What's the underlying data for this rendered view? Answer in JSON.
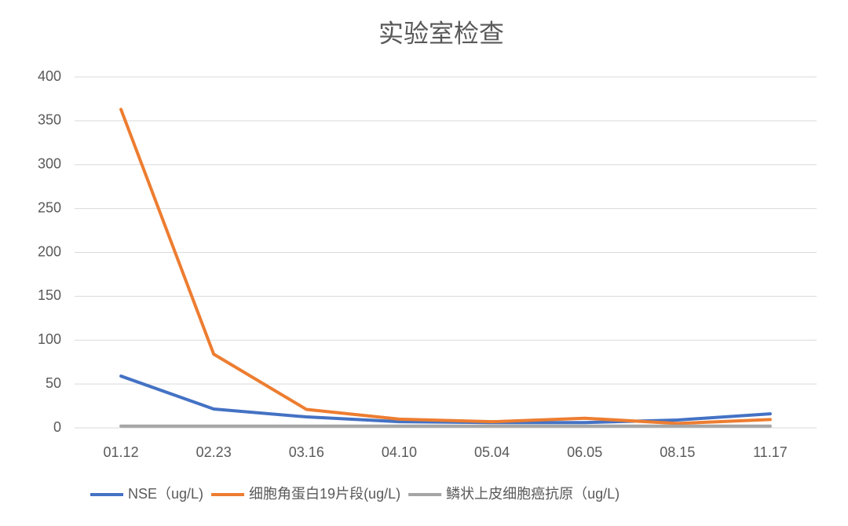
{
  "chart_data": {
    "type": "line",
    "title": "实验室检查",
    "categories": [
      "01.12",
      "02.23",
      "03.16",
      "04.10",
      "05.04",
      "06.05",
      "08.15",
      "11.17"
    ],
    "series": [
      {
        "name": "NSE（ug/L)",
        "color": "#4472c4",
        "values": [
          59,
          21.5,
          12.5,
          7,
          6,
          6,
          9,
          16
        ]
      },
      {
        "name": "细胞角蛋白19片段(ug/L)",
        "color": "#ed7d31",
        "values": [
          363,
          84,
          21,
          10,
          7,
          11,
          5,
          9.5
        ]
      },
      {
        "name": "鳞状上皮细胞癌抗原（ug/L)",
        "color": "#a5a5a5",
        "values": [
          2,
          2,
          2,
          2,
          2,
          2,
          2,
          2
        ]
      }
    ],
    "ylim": [
      0,
      400
    ],
    "yticks": [
      0,
      50,
      100,
      150,
      200,
      250,
      300,
      350,
      400
    ],
    "grid": true,
    "legend": "bottom"
  }
}
